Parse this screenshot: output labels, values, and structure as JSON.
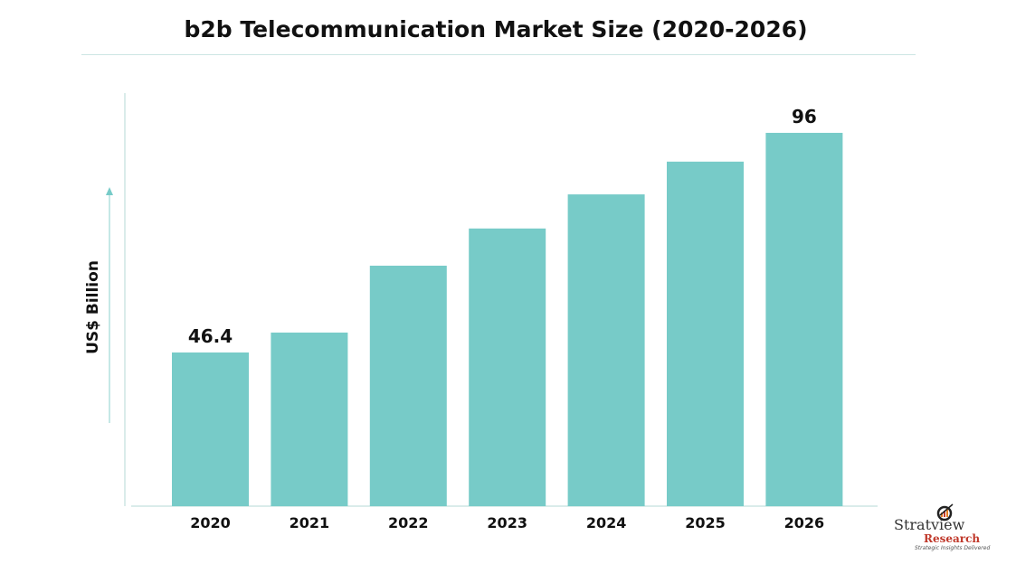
{
  "chart_data": {
    "type": "bar",
    "title": "b2b Telecommunication Market Size (2020-2026)",
    "xlabel": "",
    "ylabel": "US$ Billion",
    "categories": [
      "2020",
      "2021",
      "2022",
      "2023",
      "2024",
      "2025",
      "2026"
    ],
    "values": [
      46.4,
      50.9,
      66.0,
      74.4,
      82.1,
      89.5,
      96
    ],
    "data_labels": {
      "2020": "46.4",
      "2026": "96"
    },
    "bar_color": "#77cbc8",
    "axis_color": "#cde6e4",
    "grid": false,
    "legend": "none"
  },
  "logo": {
    "name": "Stratview",
    "sub": "Research",
    "tagline": "Strategic Insights Delivered",
    "tm": "™"
  }
}
